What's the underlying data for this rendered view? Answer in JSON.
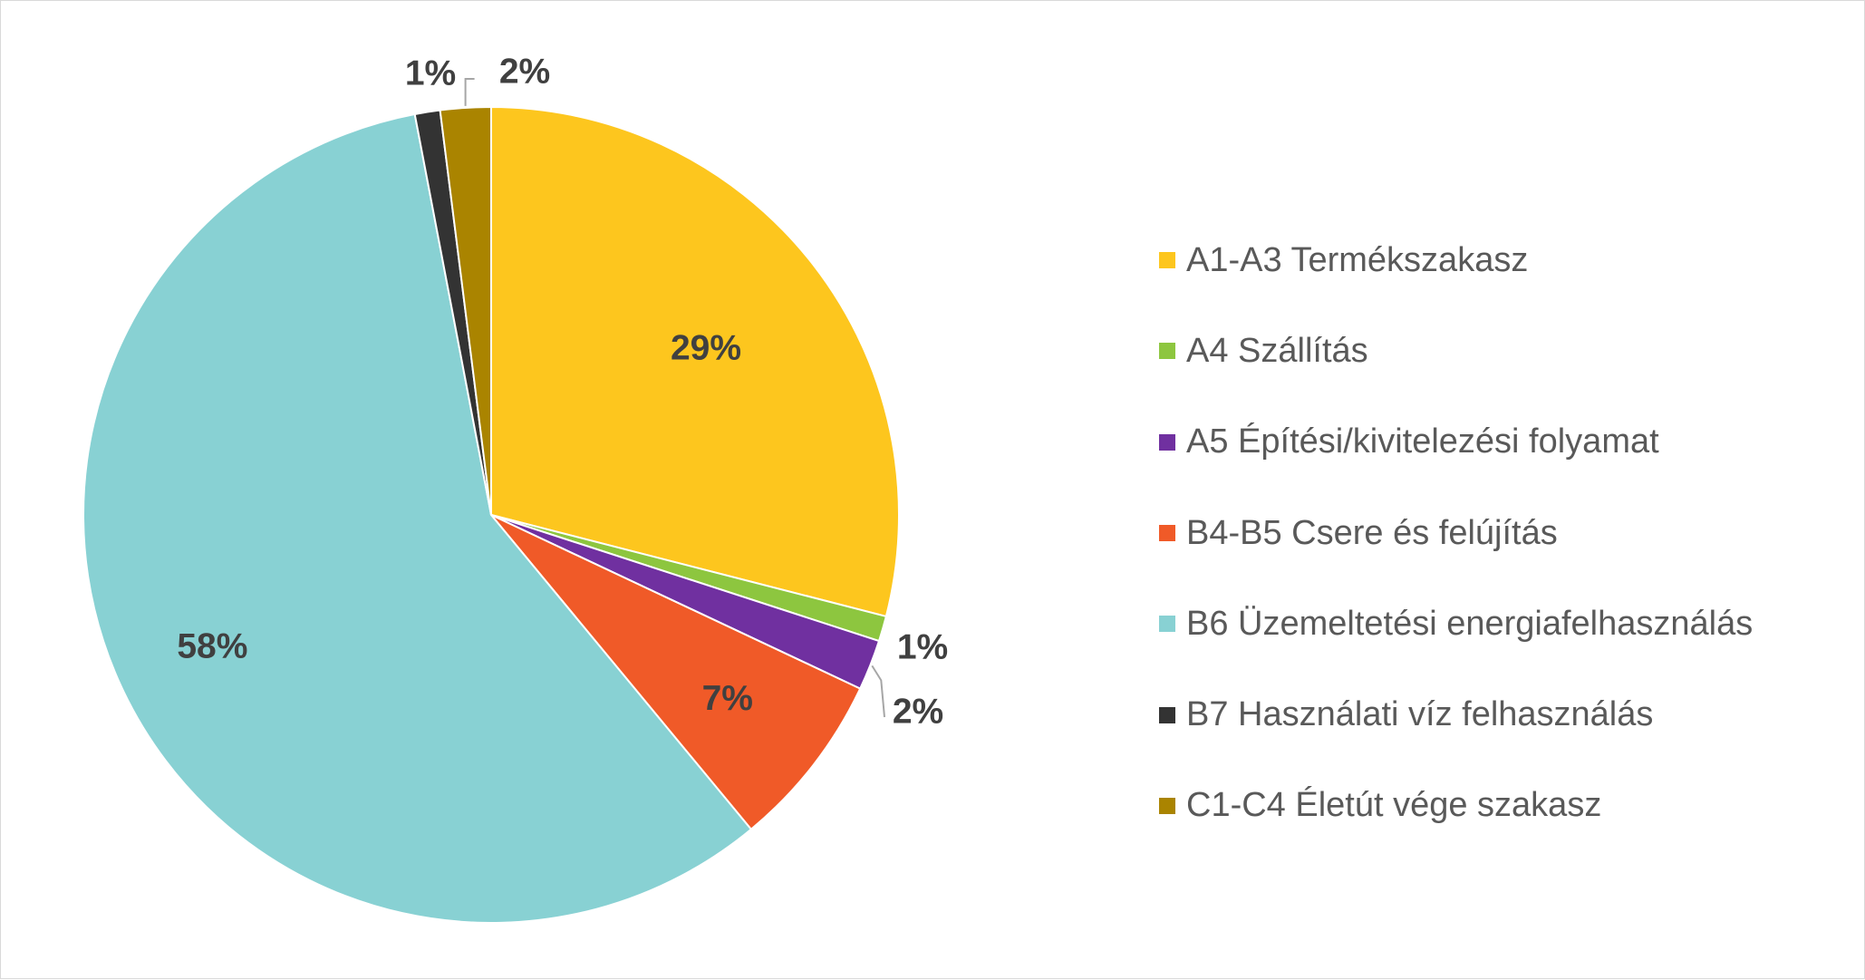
{
  "chart_data": {
    "type": "pie",
    "categories": [
      "A1-A3 Termékszakasz",
      "A4 Szállítás",
      "A5 Építési/kivitelezési folyamat",
      "B4-B5 Csere és felújítás",
      "B6 Üzemeltetési energiafelhasználás",
      "B7 Használati víz felhasználás",
      "C1-C4 Életút vége szakasz"
    ],
    "values": [
      29,
      1,
      2,
      7,
      58,
      1,
      2
    ],
    "data_labels": [
      "29%",
      "1%",
      "2%",
      "7%",
      "58%",
      "1%",
      "2%"
    ],
    "colors": [
      "#FDC61E",
      "#8DC63F",
      "#7030A0",
      "#F05A28",
      "#88D1D3",
      "#333333",
      "#AA8400"
    ],
    "legend_position": "right",
    "title": ""
  }
}
